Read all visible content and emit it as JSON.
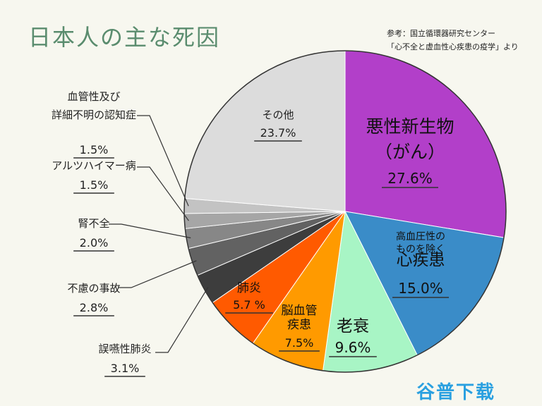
{
  "title": "日本人の主な死因",
  "source": [
    "参考：国立循環器研究センター",
    "「心不全と虚血性心疾患の疫学」より"
  ],
  "watermark": "谷普下载",
  "chart_data": {
    "type": "pie",
    "unit": "%",
    "slices": [
      {
        "label_lines": [
          "悪性新生物",
          "（がん）"
        ],
        "value": 27.6,
        "value_text": "27.6%",
        "color": "#b23fc9"
      },
      {
        "label_lines": [
          "高血圧性の",
          "ものを除く",
          "心疾患"
        ],
        "value": 15.0,
        "value_text": "15.0%",
        "color": "#3a8cc8"
      },
      {
        "label_lines": [
          "老衰"
        ],
        "value": 9.6,
        "value_text": "9.6%",
        "color": "#a8f5c5"
      },
      {
        "label_lines": [
          "脳血管",
          "疾患"
        ],
        "value": 7.5,
        "value_text": "7.5%",
        "color": "#ff9a00"
      },
      {
        "label_lines": [
          "肺炎"
        ],
        "value": 5.7,
        "value_text": "5.7 %",
        "color": "#ff5a00"
      },
      {
        "label_lines": [
          "誤嚥性肺炎"
        ],
        "value": 3.1,
        "value_text": "3.1%",
        "color": "#3d3d3d"
      },
      {
        "label_lines": [
          "不慮の事故"
        ],
        "value": 2.8,
        "value_text": "2.8%",
        "color": "#626262"
      },
      {
        "label_lines": [
          "腎不全"
        ],
        "value": 2.0,
        "value_text": "2.0%",
        "color": "#878787"
      },
      {
        "label_lines": [
          "アルツハイマー病"
        ],
        "value": 1.5,
        "value_text": "1.5%",
        "color": "#a6a6a6"
      },
      {
        "label_lines": [
          "血管性及び",
          "詳細不明の認知症"
        ],
        "value": 1.5,
        "value_text": "1.5%",
        "color": "#c3c3c3"
      },
      {
        "label_lines": [
          "その他"
        ],
        "value": 23.7,
        "value_text": "23.7%",
        "color": "#dcdcdc"
      }
    ]
  }
}
